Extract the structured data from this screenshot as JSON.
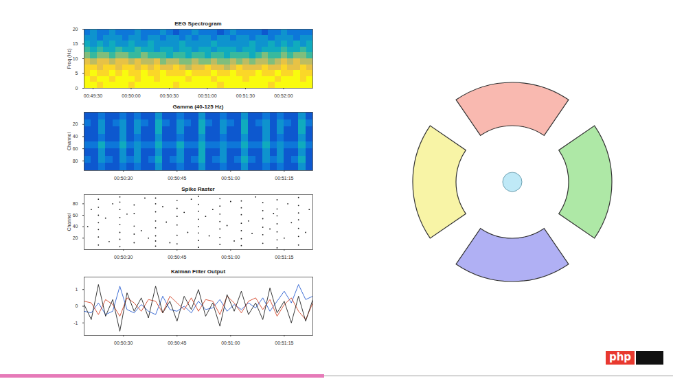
{
  "chart_data": [
    {
      "type": "heatmap",
      "title": "EEG Spectrogram",
      "ylabel": "Freq (Hz)",
      "xlim": [
        2963,
        3143
      ],
      "xticks": [
        {
          "value": 2970,
          "label": "00:49:30"
        },
        {
          "value": 3000,
          "label": "00:50:00"
        },
        {
          "value": 3030,
          "label": "00:50:30"
        },
        {
          "value": 3060,
          "label": "00:51:00"
        },
        {
          "value": 3090,
          "label": "00:51:30"
        },
        {
          "value": 3120,
          "label": "00:52:00"
        }
      ],
      "ylim": [
        0,
        20
      ],
      "yticks": [
        0,
        5,
        10,
        15,
        20
      ],
      "clim": [
        0,
        10
      ],
      "x_bins": [
        2963,
        2968,
        2973,
        2978,
        2983,
        2988,
        2993,
        2998,
        3003,
        3008,
        3013,
        3018,
        3023,
        3028,
        3033,
        3038,
        3043,
        3048,
        3053,
        3058,
        3063,
        3068,
        3073,
        3078,
        3083,
        3088,
        3093,
        3098,
        3103,
        3108,
        3113,
        3118,
        3123,
        3128,
        3133,
        3138,
        3143
      ],
      "y_bins": [
        0,
        2,
        4,
        6,
        8,
        10,
        12,
        14,
        16,
        18,
        20
      ],
      "values": [
        [
          10,
          10,
          9,
          10,
          10,
          10,
          10,
          9,
          10,
          10,
          10,
          10,
          10,
          10,
          9,
          10,
          10,
          10,
          10,
          10,
          10,
          9,
          10,
          10,
          10,
          10,
          10,
          10,
          10,
          9,
          10,
          10,
          10,
          10,
          10,
          10
        ],
        [
          10,
          9,
          10,
          10,
          9,
          10,
          10,
          10,
          9,
          10,
          10,
          9,
          10,
          10,
          10,
          10,
          9,
          10,
          10,
          10,
          9,
          10,
          10,
          10,
          10,
          9,
          10,
          10,
          10,
          10,
          9,
          10,
          10,
          10,
          9,
          10
        ],
        [
          9,
          10,
          9,
          9,
          10,
          9,
          10,
          9,
          9,
          10,
          9,
          9,
          10,
          9,
          9,
          9,
          10,
          9,
          9,
          9,
          10,
          9,
          9,
          10,
          9,
          9,
          9,
          10,
          9,
          9,
          10,
          9,
          9,
          10,
          9,
          9
        ],
        [
          9,
          9,
          8,
          9,
          9,
          8,
          9,
          9,
          8,
          9,
          8,
          9,
          8,
          8,
          9,
          8,
          7,
          8,
          8,
          9,
          8,
          8,
          7,
          8,
          9,
          8,
          8,
          8,
          9,
          8,
          8,
          9,
          8,
          8,
          9,
          8
        ],
        [
          8,
          7,
          8,
          8,
          7,
          8,
          8,
          7,
          8,
          7,
          7,
          8,
          6,
          7,
          7,
          6,
          6,
          7,
          6,
          6,
          7,
          6,
          6,
          7,
          6,
          7,
          6,
          7,
          7,
          6,
          7,
          8,
          7,
          8,
          7,
          7
        ],
        [
          6,
          5,
          6,
          6,
          5,
          6,
          6,
          5,
          5,
          6,
          5,
          5,
          5,
          4,
          5,
          5,
          4,
          5,
          5,
          4,
          5,
          5,
          4,
          5,
          5,
          5,
          4,
          5,
          6,
          5,
          5,
          6,
          5,
          6,
          6,
          5
        ],
        [
          5,
          4,
          5,
          4,
          4,
          5,
          4,
          4,
          5,
          4,
          4,
          3,
          4,
          4,
          3,
          4,
          4,
          3,
          4,
          4,
          3,
          4,
          4,
          4,
          3,
          4,
          4,
          3,
          4,
          4,
          4,
          5,
          4,
          4,
          5,
          4
        ],
        [
          4,
          3,
          4,
          3,
          4,
          3,
          3,
          4,
          3,
          3,
          4,
          3,
          3,
          3,
          3,
          4,
          3,
          3,
          3,
          3,
          4,
          3,
          3,
          3,
          3,
          3,
          4,
          3,
          3,
          4,
          3,
          4,
          3,
          4,
          3,
          4
        ],
        [
          3,
          3,
          2,
          3,
          3,
          3,
          2,
          3,
          3,
          2,
          3,
          3,
          2,
          3,
          3,
          2,
          3,
          2,
          3,
          3,
          2,
          3,
          3,
          2,
          3,
          3,
          2,
          3,
          3,
          2,
          3,
          3,
          3,
          2,
          3,
          3
        ],
        [
          2,
          3,
          2,
          2,
          3,
          2,
          2,
          2,
          3,
          2,
          2,
          2,
          3,
          2,
          1,
          2,
          2,
          3,
          2,
          2,
          2,
          1,
          2,
          3,
          2,
          2,
          2,
          2,
          1,
          2,
          2,
          3,
          2,
          2,
          2,
          2
        ]
      ]
    },
    {
      "type": "heatmap",
      "title": "Gamma (40-125 Hz)",
      "ylabel": "Channel",
      "xlim": [
        3019,
        3083
      ],
      "xticks": [
        {
          "value": 3030,
          "label": "00:50:30"
        },
        {
          "value": 3045,
          "label": "00:50:45"
        },
        {
          "value": 3060,
          "label": "00:51:00"
        },
        {
          "value": 3075,
          "label": "00:51:15"
        }
      ],
      "ylim": [
        96,
        0
      ],
      "yticks": [
        20,
        40,
        60,
        80
      ],
      "clim": [
        0,
        10
      ],
      "x_bins": [
        3019,
        3021,
        3023,
        3025,
        3027,
        3029,
        3031,
        3033,
        3035,
        3037,
        3039,
        3041,
        3043,
        3045,
        3047,
        3049,
        3051,
        3053,
        3055,
        3057,
        3059,
        3061,
        3063,
        3065,
        3067,
        3069,
        3071,
        3073,
        3075,
        3077,
        3079,
        3081,
        3083
      ],
      "y_bins": [
        0,
        12,
        24,
        36,
        48,
        60,
        72,
        84,
        96
      ],
      "values": [
        [
          1,
          1,
          2,
          1,
          1,
          2,
          1,
          2,
          1,
          1,
          3,
          1,
          1,
          2,
          1,
          1,
          3,
          1,
          1,
          2,
          1,
          1,
          3,
          1,
          1,
          2,
          1,
          2,
          1,
          1,
          3,
          1
        ],
        [
          2,
          1,
          3,
          1,
          2,
          3,
          1,
          3,
          2,
          1,
          4,
          2,
          1,
          3,
          2,
          1,
          4,
          2,
          1,
          3,
          2,
          1,
          4,
          1,
          2,
          3,
          1,
          3,
          2,
          1,
          4,
          2
        ],
        [
          1,
          1,
          3,
          1,
          1,
          3,
          1,
          3,
          1,
          1,
          4,
          1,
          1,
          3,
          1,
          1,
          4,
          1,
          1,
          3,
          1,
          1,
          4,
          1,
          1,
          3,
          1,
          3,
          1,
          1,
          4,
          1
        ],
        [
          1,
          1,
          2,
          1,
          1,
          3,
          1,
          2,
          1,
          1,
          3,
          1,
          1,
          2,
          1,
          1,
          3,
          1,
          1,
          2,
          1,
          1,
          3,
          1,
          1,
          3,
          1,
          2,
          1,
          1,
          3,
          1
        ],
        [
          2,
          2,
          4,
          2,
          2,
          4,
          2,
          3,
          2,
          2,
          4,
          2,
          2,
          4,
          2,
          2,
          4,
          2,
          2,
          3,
          2,
          2,
          4,
          2,
          2,
          4,
          2,
          3,
          2,
          2,
          4,
          2
        ],
        [
          1,
          1,
          3,
          1,
          1,
          3,
          1,
          3,
          1,
          1,
          3,
          1,
          1,
          3,
          1,
          1,
          4,
          1,
          1,
          3,
          1,
          1,
          3,
          1,
          1,
          3,
          1,
          3,
          1,
          1,
          3,
          1
        ],
        [
          2,
          1,
          3,
          2,
          1,
          3,
          2,
          3,
          1,
          2,
          4,
          1,
          2,
          3,
          1,
          2,
          4,
          1,
          2,
          3,
          1,
          2,
          4,
          2,
          1,
          3,
          2,
          3,
          1,
          2,
          4,
          1
        ],
        [
          1,
          1,
          2,
          1,
          1,
          2,
          1,
          2,
          1,
          1,
          3,
          1,
          1,
          2,
          1,
          1,
          3,
          1,
          1,
          2,
          1,
          1,
          3,
          1,
          1,
          2,
          1,
          2,
          1,
          1,
          3,
          1
        ]
      ]
    },
    {
      "type": "scatter",
      "title": "Spike Raster",
      "ylabel": "Channel",
      "color": "#1a1a1a",
      "xlim": [
        3019,
        3083
      ],
      "xticks": [
        {
          "value": 3030,
          "label": "00:50:30"
        },
        {
          "value": 3045,
          "label": "00:50:45"
        },
        {
          "value": 3060,
          "label": "00:51:00"
        },
        {
          "value": 3075,
          "label": "00:51:15"
        }
      ],
      "ylim": [
        0,
        96
      ],
      "yticks": [
        20,
        40,
        60,
        80
      ],
      "x": [
        3023,
        3023,
        3023,
        3023,
        3023,
        3023,
        3023,
        3029,
        3029,
        3029,
        3029,
        3029,
        3029,
        3029,
        3029,
        3033,
        3033,
        3033,
        3033,
        3033,
        3039,
        3039,
        3039,
        3039,
        3039,
        3039,
        3039,
        3039,
        3045,
        3045,
        3045,
        3045,
        3045,
        3045,
        3051,
        3051,
        3051,
        3051,
        3051,
        3051,
        3051,
        3051,
        3057,
        3057,
        3057,
        3057,
        3057,
        3057,
        3057,
        3063,
        3063,
        3063,
        3063,
        3063,
        3063,
        3063,
        3069,
        3069,
        3069,
        3069,
        3069,
        3069,
        3073,
        3073,
        3073,
        3073,
        3073,
        3073,
        3073,
        3079,
        3079,
        3079,
        3079,
        3079,
        3079,
        3079,
        3020,
        3021,
        3025,
        3026,
        3027,
        3031,
        3035,
        3036,
        3037,
        3041,
        3042,
        3043,
        3047,
        3048,
        3049,
        3053,
        3054,
        3055,
        3059,
        3060,
        3061,
        3065,
        3066,
        3067,
        3071,
        3072,
        3075,
        3076,
        3077,
        3081,
        3082
      ],
      "y": [
        8,
        22,
        35,
        47,
        60,
        74,
        88,
        5,
        18,
        30,
        44,
        56,
        70,
        83,
        92,
        12,
        27,
        41,
        63,
        78,
        6,
        15,
        24,
        38,
        50,
        66,
        80,
        90,
        10,
        25,
        43,
        58,
        72,
        86,
        4,
        16,
        29,
        40,
        53,
        67,
        79,
        93,
        9,
        21,
        36,
        49,
        62,
        76,
        89,
        7,
        19,
        33,
        46,
        61,
        73,
        85,
        11,
        26,
        39,
        54,
        68,
        82,
        3,
        17,
        31,
        45,
        59,
        71,
        87,
        8,
        23,
        37,
        52,
        64,
        77,
        91,
        40,
        70,
        55,
        14,
        80,
        62,
        33,
        90,
        20,
        75,
        48,
        12,
        65,
        30,
        88,
        58,
        24,
        70,
        42,
        84,
        15,
        50,
        28,
        92,
        36,
        63,
        20,
        80,
        47,
        30,
        70
      ]
    },
    {
      "type": "line",
      "title": "Kalman Filter Output",
      "xlim": [
        3019,
        3083
      ],
      "xticks": [
        {
          "value": 3030,
          "label": "00:50:30"
        },
        {
          "value": 3045,
          "label": "00:50:45"
        },
        {
          "value": 3060,
          "label": "00:51:00"
        },
        {
          "value": 3075,
          "label": "00:51:15"
        }
      ],
      "ylim": [
        -1.75,
        1.75
      ],
      "yticks": [
        -1,
        0,
        1
      ],
      "x": [
        3019,
        3021,
        3023,
        3025,
        3027,
        3029,
        3031,
        3033,
        3035,
        3037,
        3039,
        3041,
        3043,
        3045,
        3047,
        3049,
        3051,
        3053,
        3055,
        3057,
        3059,
        3061,
        3063,
        3065,
        3067,
        3069,
        3071,
        3073,
        3075,
        3077,
        3079,
        3081,
        3083
      ],
      "series": [
        {
          "color": "#2a5fd0",
          "values": [
            -0.3,
            -0.4,
            0.2,
            -0.5,
            -0.3,
            1.2,
            -0.2,
            -0.4,
            0.1,
            -0.3,
            -0.5,
            0.6,
            -0.2,
            -0.3,
            0.0,
            -0.4,
            0.3,
            -0.2,
            -0.1,
            0.4,
            -0.3,
            0.1,
            -0.2,
            0.2,
            -0.1,
            0.5,
            -0.3,
            0.3,
            0.9,
            0.2,
            1.3,
            0.4,
            0.6
          ]
        },
        {
          "color": "#d2462a",
          "values": [
            0.3,
            0.2,
            -0.5,
            0.4,
            0.1,
            -0.6,
            0.5,
            0.2,
            -0.3,
            0.4,
            0.3,
            -0.4,
            0.6,
            0.2,
            -0.2,
            0.5,
            -0.3,
            0.4,
            0.3,
            -0.5,
            0.6,
            0.2,
            -0.4,
            0.3,
            0.5,
            -0.2,
            0.4,
            -0.6,
            0.1,
            0.5,
            -0.3,
            -0.8,
            0.2
          ]
        },
        {
          "color": "#202020",
          "values": [
            0.1,
            -0.8,
            1.3,
            -0.6,
            0.4,
            -1.5,
            0.8,
            -0.3,
            0.5,
            -0.7,
            1.2,
            -0.4,
            0.3,
            -0.9,
            0.6,
            -0.2,
            1.0,
            -0.6,
            0.2,
            -1.2,
            0.7,
            -0.3,
            0.9,
            -0.5,
            0.2,
            -0.8,
            1.1,
            -0.4,
            0.3,
            -1.0,
            0.6,
            -0.9,
            0.4
          ]
        }
      ]
    }
  ],
  "logo": "php"
}
